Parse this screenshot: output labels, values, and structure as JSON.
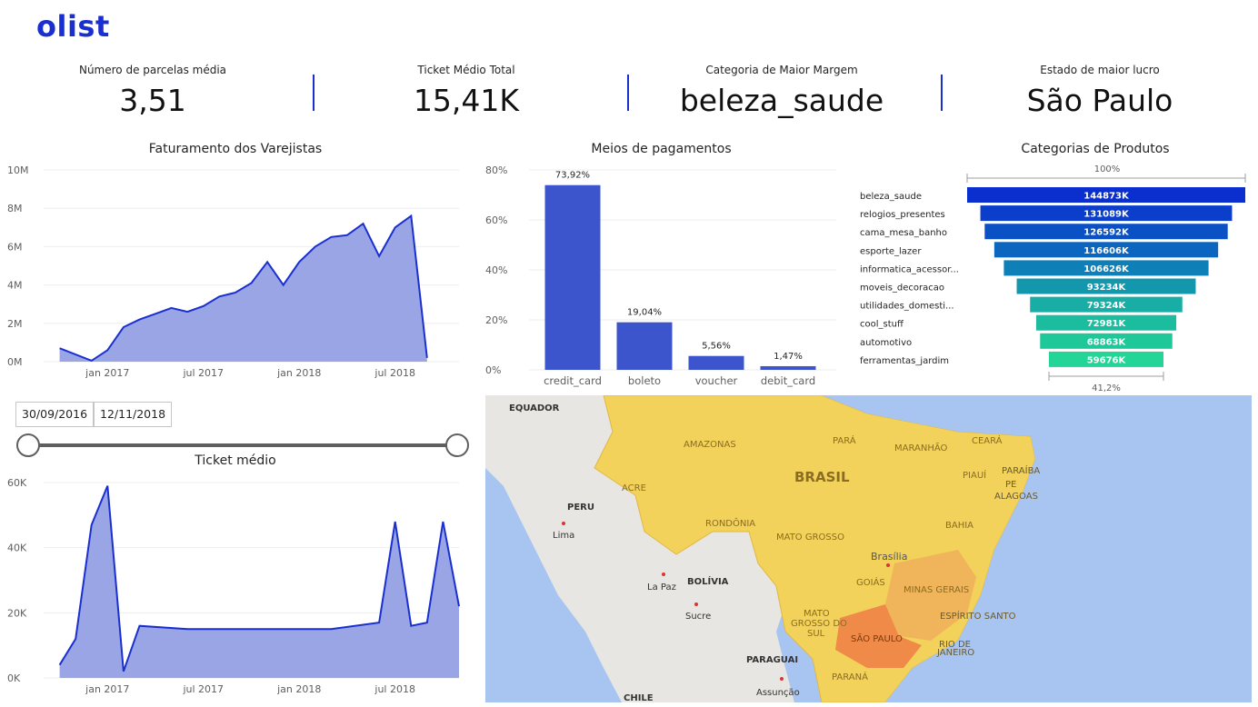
{
  "brand": "olist",
  "kpis": [
    {
      "label": "Número de parcelas média",
      "value": "3,51"
    },
    {
      "label": "Ticket Médio Total",
      "value": "15,41K"
    },
    {
      "label": "Categoria de Maior Margem",
      "value": "beleza_saude"
    },
    {
      "label": "Estado de maior lucro",
      "value": "São Paulo"
    }
  ],
  "accent": "#1a2fd0",
  "area_fill": "#9aa5e6",
  "bar_color": "#3d55cc",
  "revenue_chart": {
    "title": "Faturamento dos Varejistas",
    "y_ticks": [
      "10M",
      "8M",
      "6M",
      "4M",
      "2M",
      "0M"
    ],
    "x_ticks": [
      "jan 2017",
      "jul 2017",
      "jan 2018",
      "jul 2018"
    ]
  },
  "ticket_chart": {
    "title": "Ticket médio",
    "y_ticks": [
      "60K",
      "40K",
      "20K",
      "0K"
    ],
    "x_ticks": [
      "jan 2017",
      "jul 2017",
      "jan 2018",
      "jul 2018"
    ]
  },
  "date_filter": {
    "start": "30/09/2016",
    "end": "12/11/2018"
  },
  "chart_data": [
    {
      "type": "area",
      "title": "Faturamento dos Varejistas",
      "x_range": [
        "2016-09",
        "2018-11"
      ],
      "ylim": [
        0,
        10000000
      ],
      "x": [
        "2016-10",
        "2016-12",
        "2017-01",
        "2017-02",
        "2017-03",
        "2017-04",
        "2017-05",
        "2017-06",
        "2017-07",
        "2017-08",
        "2017-09",
        "2017-10",
        "2017-11",
        "2017-12",
        "2018-01",
        "2018-02",
        "2018-03",
        "2018-04",
        "2018-05",
        "2018-06",
        "2018-07",
        "2018-08",
        "2018-09"
      ],
      "values": [
        700000,
        50000,
        600000,
        1800000,
        2200000,
        2500000,
        2800000,
        2600000,
        2900000,
        3400000,
        3600000,
        4100000,
        5200000,
        4000000,
        5200000,
        6000000,
        6500000,
        6600000,
        7200000,
        5500000,
        7000000,
        7600000,
        200000
      ],
      "xlabel": "",
      "ylabel": ""
    },
    {
      "type": "bar",
      "title": "Meios de pagamentos",
      "categories": [
        "credit_card",
        "boleto",
        "voucher",
        "debit_card"
      ],
      "values": [
        73.92,
        19.04,
        5.56,
        1.47
      ],
      "labels": [
        "73,92%",
        "19,04%",
        "5,56%",
        "1,47%"
      ],
      "y_ticks": [
        "80%",
        "60%",
        "40%",
        "20%",
        "0%"
      ],
      "ylim": [
        0,
        80
      ]
    },
    {
      "type": "bar",
      "subtype": "funnel",
      "title": "Categorias de Produtos",
      "top_label": "100%",
      "bottom_label": "41,2%",
      "categories": [
        "beleza_saude",
        "relogios_presentes",
        "cama_mesa_banho",
        "esporte_lazer",
        "informatica_acessor...",
        "moveis_decoracao",
        "utilidades_domesti...",
        "cool_stuff",
        "automotivo",
        "ferramentas_jardim"
      ],
      "values": [
        144873,
        131089,
        126592,
        116606,
        106626,
        93234,
        79324,
        72981,
        68863,
        59676
      ],
      "labels": [
        "144873K",
        "131089K",
        "126592K",
        "116606K",
        "106626K",
        "93234K",
        "79324K",
        "72981K",
        "68863K",
        "59676K"
      ],
      "colors": [
        "#0b2fcf",
        "#0a3ecb",
        "#0b51c6",
        "#0c66bf",
        "#0e80b7",
        "#1297ad",
        "#18aea5",
        "#1cbc9e",
        "#1fc899",
        "#23d597"
      ]
    },
    {
      "type": "area",
      "title": "Ticket médio",
      "x_range": [
        "2016-09",
        "2018-11"
      ],
      "ylim": [
        0,
        60000
      ],
      "x": [
        "2016-10",
        "2016-11",
        "2016-12",
        "2017-01",
        "2017-02",
        "2017-03",
        "2017-06",
        "2017-09",
        "2017-12",
        "2018-03",
        "2018-06",
        "2018-07",
        "2018-08",
        "2018-09",
        "2018-10",
        "2018-11"
      ],
      "values": [
        4000,
        12000,
        47000,
        59000,
        2000,
        16000,
        15000,
        15000,
        15000,
        15000,
        17000,
        48000,
        16000,
        17000,
        48000,
        22000
      ],
      "xlabel": "",
      "ylabel": ""
    }
  ],
  "map": {
    "labels": {
      "equador": "EQUADOR",
      "peru": "PERU",
      "lima": "Lima",
      "bolivia": "BOLÍVIA",
      "lapaz": "La Paz",
      "sucre": "Sucre",
      "paraguai": "PARAGUAI",
      "assuncao": "Assunção",
      "chile": "CHILE",
      "brasil": "BRASIL",
      "amazonas": "AMAZONAS",
      "para": "PARÁ",
      "maranhao": "MARANHÃO",
      "ceara": "CEARÁ",
      "piaui": "PIAUÍ",
      "paraiba": "PARAÍBA",
      "pe": "PE",
      "alagoas": "ALAGOAS",
      "acre": "ACRE",
      "rondonia": "RONDÔNIA",
      "matogrosso": "MATO GROSSO",
      "bahia": "BAHIA",
      "brasilia": "Brasília",
      "goias": "GOIÁS",
      "minas": "MINAS GERAIS",
      "mato": "MATO",
      "grosso_do": "GROSSO DO",
      "sul": "SUL",
      "espirito": "ESPÍRITO SANTO",
      "saopaulo": "SÃO PAULO",
      "rio_de": "RIO DE",
      "janeiro": "JANEIRO",
      "parana": "PARANÁ"
    }
  }
}
